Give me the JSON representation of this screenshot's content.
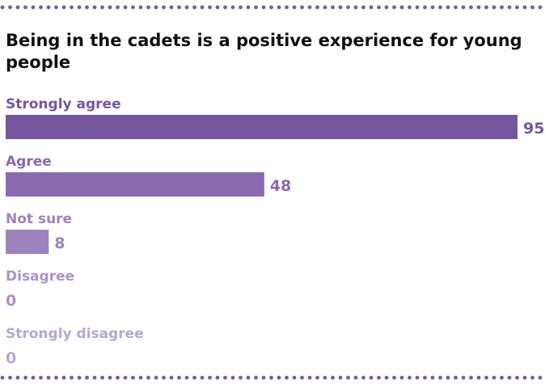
{
  "chart_data": {
    "type": "bar",
    "orientation": "horizontal",
    "title": "Being in the cadets is a positive experience for young people",
    "categories": [
      "Strongly agree",
      "Agree",
      "Not sure",
      "Disagree",
      "Strongly disagree"
    ],
    "values": [
      95,
      48,
      8,
      0,
      0
    ],
    "xlim": [
      0,
      95
    ],
    "grid": false,
    "legend": "none",
    "colors": {
      "bars": [
        "#76559f",
        "#8a69b0",
        "#9d82be",
        "#aa94c8",
        "#b7a7d2"
      ],
      "labels": [
        "#76559f",
        "#8a69b0",
        "#9d82be",
        "#aa94c8",
        "#b7a7d2"
      ],
      "title": "#111111",
      "dots": "#7a5aa3"
    }
  }
}
